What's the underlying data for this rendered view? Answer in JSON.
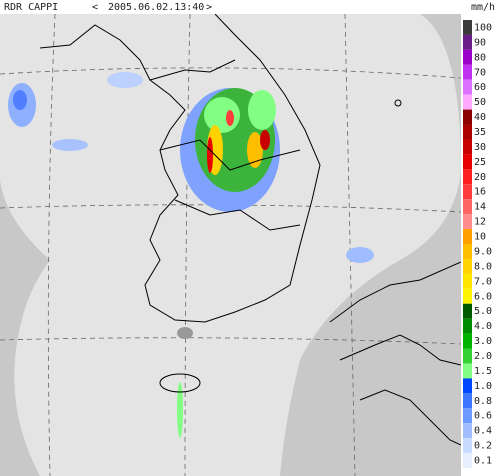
{
  "header": {
    "product": "RDR CAPPI",
    "prev": "<",
    "time": "2005.06.02.13:40",
    "next": ">",
    "unit": "mm/h"
  },
  "legend": {
    "items": [
      {
        "label": "100",
        "color": "#3a3a3a"
      },
      {
        "label": "90",
        "color": "#6a1e8a"
      },
      {
        "label": "80",
        "color": "#9b00c8"
      },
      {
        "label": "70",
        "color": "#c030f0"
      },
      {
        "label": "60",
        "color": "#dc70ff"
      },
      {
        "label": "50",
        "color": "#ffaaff"
      },
      {
        "label": "40",
        "color": "#8c0000"
      },
      {
        "label": "35",
        "color": "#aa0000"
      },
      {
        "label": "30",
        "color": "#c80000"
      },
      {
        "label": "25",
        "color": "#e60000"
      },
      {
        "label": "20",
        "color": "#ff1e1e"
      },
      {
        "label": "16",
        "color": "#ff3c3c"
      },
      {
        "label": "14",
        "color": "#ff6464"
      },
      {
        "label": "12",
        "color": "#ff8c8c"
      },
      {
        "label": "10",
        "color": "#ffa000"
      },
      {
        "label": "9.0",
        "color": "#ffbe00"
      },
      {
        "label": "8.0",
        "color": "#ffd200"
      },
      {
        "label": "7.0",
        "color": "#ffe600"
      },
      {
        "label": "6.0",
        "color": "#fff500"
      },
      {
        "label": "5.0",
        "color": "#005a00"
      },
      {
        "label": "4.0",
        "color": "#008c00"
      },
      {
        "label": "3.0",
        "color": "#00b400"
      },
      {
        "label": "2.0",
        "color": "#32d232"
      },
      {
        "label": "1.5",
        "color": "#82ff82"
      },
      {
        "label": "1.0",
        "color": "#0046ff"
      },
      {
        "label": "0.8",
        "color": "#3c78ff"
      },
      {
        "label": "0.6",
        "color": "#6e9bff"
      },
      {
        "label": "0.4",
        "color": "#a0beff"
      },
      {
        "label": "0.2",
        "color": "#c8dcff"
      },
      {
        "label": "0.1",
        "color": "#e6efff"
      }
    ]
  }
}
